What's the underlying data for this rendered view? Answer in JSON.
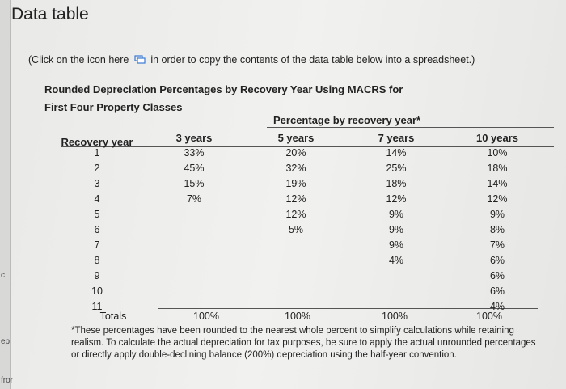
{
  "header": {
    "title": "Data table"
  },
  "instruction": {
    "before_icon": "(Click on the icon here",
    "after_icon": "in order to copy the contents of the data table below into a spreadsheet.)"
  },
  "table": {
    "title_lines": [
      "Rounded Depreciation Percentages by Recovery Year Using MACRS for",
      "First Four Property Classes"
    ],
    "group_header": "Percentage by recovery year*",
    "columns": [
      "Recovery year",
      "3 years",
      "5 years",
      "7 years",
      "10 years"
    ],
    "rows": [
      [
        1,
        "33%",
        "20%",
        "14%",
        "10%"
      ],
      [
        2,
        "45%",
        "32%",
        "25%",
        "18%"
      ],
      [
        3,
        "15%",
        "19%",
        "18%",
        "14%"
      ],
      [
        4,
        "7%",
        "12%",
        "12%",
        "12%"
      ],
      [
        5,
        null,
        "12%",
        "9%",
        "9%"
      ],
      [
        6,
        null,
        "5%",
        "9%",
        "8%"
      ],
      [
        7,
        null,
        null,
        "9%",
        "7%"
      ],
      [
        8,
        null,
        null,
        "4%",
        "6%"
      ],
      [
        9,
        null,
        null,
        null,
        "6%"
      ],
      [
        10,
        null,
        null,
        null,
        "6%"
      ],
      [
        11,
        null,
        null,
        null,
        "4%"
      ]
    ],
    "totals": [
      "Totals",
      "100%",
      "100%",
      "100%",
      "100%"
    ],
    "footnote": "*These percentages have been rounded to the nearest whole percent to simplify calculations while retaining realism. To calculate the actual depreciation for tax purposes, be sure to apply the actual unrounded percentages or directly apply double-declining balance (200%) depreciation using the half-year convention."
  },
  "sidebar_fragments": [
    "c",
    "ep",
    "fror"
  ]
}
